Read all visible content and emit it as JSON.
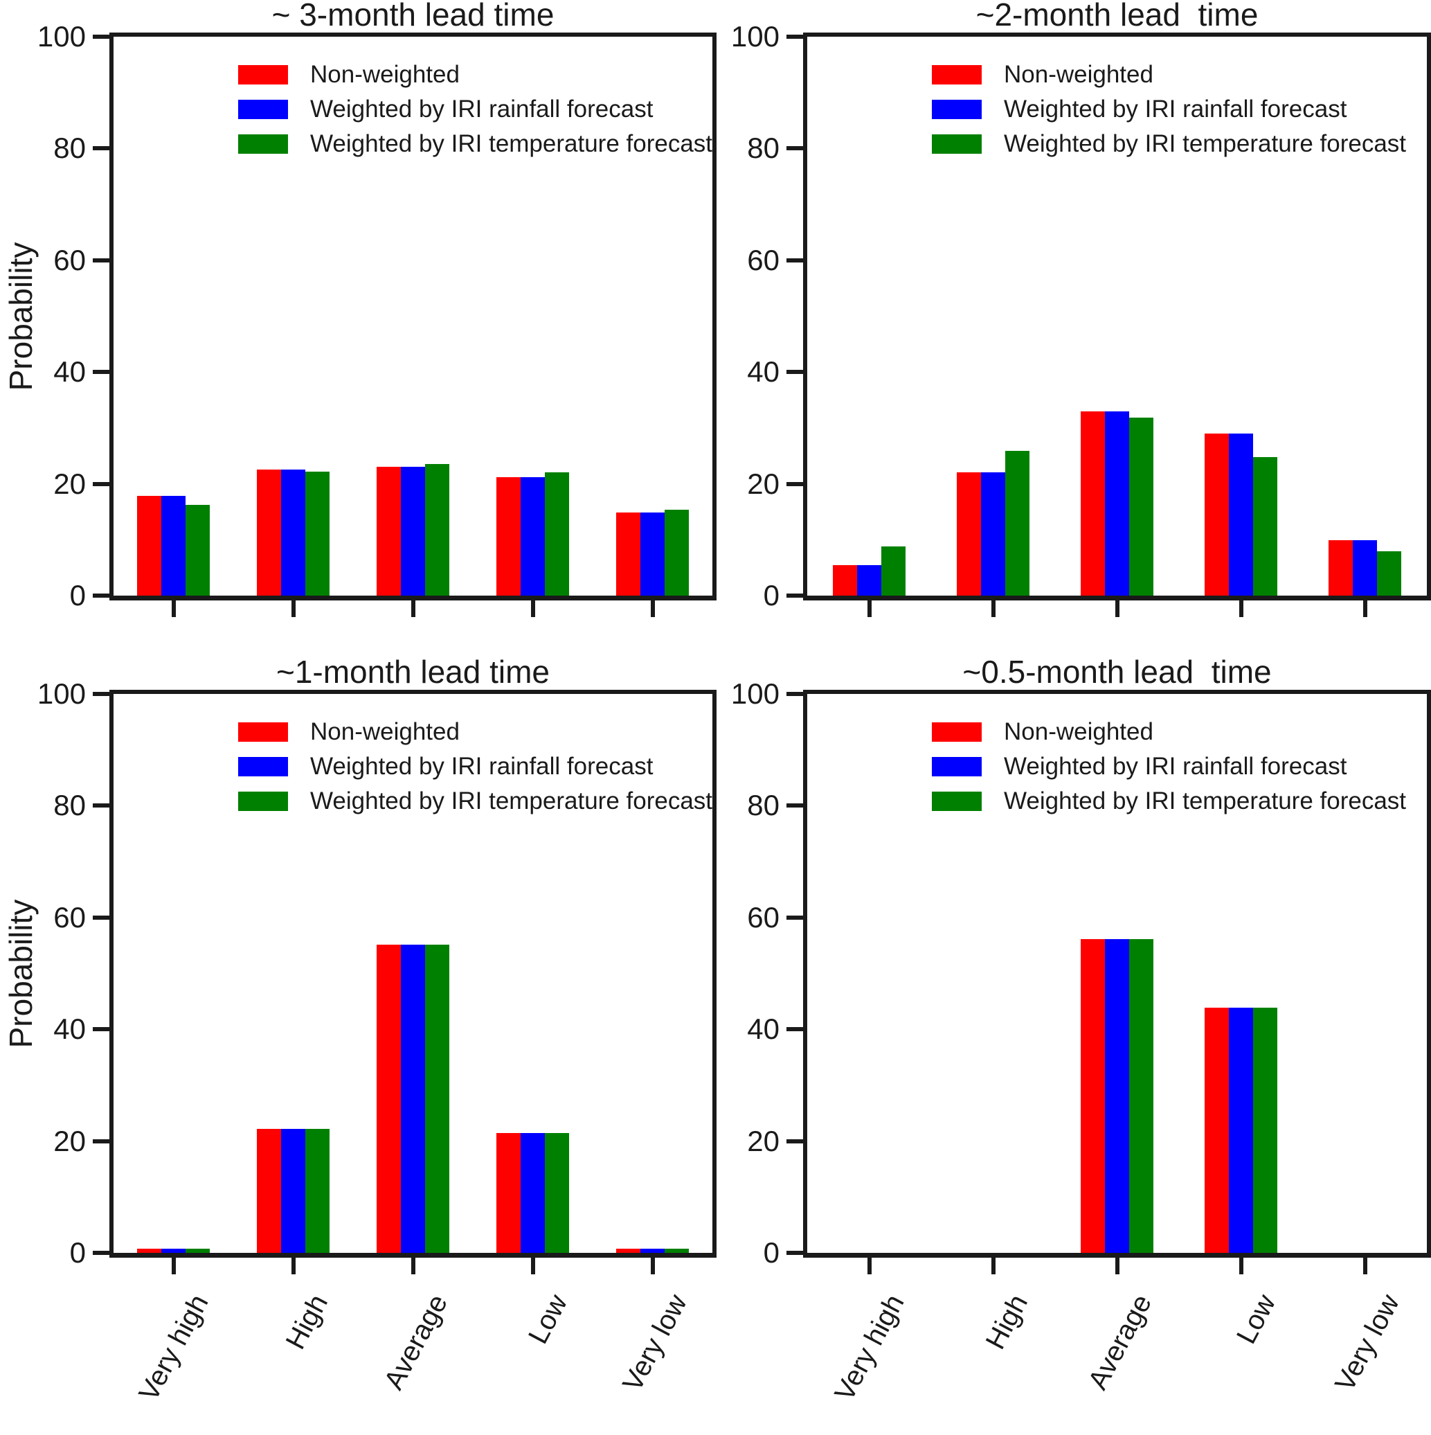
{
  "figure": {
    "y_axis_label": "Probability",
    "legend_labels": [
      "Non-weighted",
      "Weighted by IRI rainfall forecast",
      "Weighted by IRI temperature forecast"
    ],
    "colors": {
      "non_weighted": "#ff0000",
      "rainfall": "#0000ff",
      "temperature": "#008000",
      "axis": "#1a1a1a"
    }
  },
  "chart_data": [
    {
      "type": "bar",
      "title": "~ 3-month lead time",
      "ylabel": "Probability",
      "ylim": [
        0,
        100
      ],
      "yticks": [
        0,
        20,
        40,
        60,
        80,
        100
      ],
      "categories": [
        "Very high",
        "High",
        "Average",
        "Low",
        "Very low"
      ],
      "show_x_labels": false,
      "legend": true,
      "legend_position": "upper-left",
      "series": [
        {
          "name": "Non-weighted",
          "key": "non-weighted",
          "color": "#ff0000",
          "values": [
            17.8,
            22.6,
            23.1,
            21.2,
            14.9
          ]
        },
        {
          "name": "Weighted by IRI rainfall forecast",
          "key": "rainfall",
          "color": "#0000ff",
          "values": [
            17.8,
            22.6,
            23.1,
            21.2,
            14.9
          ]
        },
        {
          "name": "Weighted by IRI temperature forecast",
          "key": "temperature",
          "color": "#008000",
          "values": [
            16.2,
            22.2,
            23.6,
            22.0,
            15.4
          ]
        }
      ]
    },
    {
      "type": "bar",
      "title": "~2-month lead  time",
      "ylabel": null,
      "ylim": [
        0,
        100
      ],
      "yticks": [
        0,
        20,
        40,
        60,
        80,
        100
      ],
      "categories": [
        "Very high",
        "High",
        "Average",
        "Low",
        "Very low"
      ],
      "show_x_labels": false,
      "legend": true,
      "legend_position": "upper-left",
      "series": [
        {
          "name": "Non-weighted",
          "key": "non-weighted",
          "color": "#ff0000",
          "values": [
            5.4,
            22.1,
            33.0,
            29.0,
            9.9
          ]
        },
        {
          "name": "Weighted by IRI rainfall forecast",
          "key": "rainfall",
          "color": "#0000ff",
          "values": [
            5.4,
            22.1,
            33.0,
            29.0,
            9.9
          ]
        },
        {
          "name": "Weighted by IRI temperature forecast",
          "key": "temperature",
          "color": "#008000",
          "values": [
            8.8,
            25.9,
            31.9,
            24.8,
            7.9
          ]
        }
      ]
    },
    {
      "type": "bar",
      "title": "~1-month lead time",
      "ylabel": "Probability",
      "ylim": [
        0,
        100
      ],
      "yticks": [
        0,
        20,
        40,
        60,
        80,
        100
      ],
      "categories": [
        "Very high",
        "High",
        "Average",
        "Low",
        "Very low"
      ],
      "show_x_labels": true,
      "legend": true,
      "legend_position": "upper-left",
      "series": [
        {
          "name": "Non-weighted",
          "key": "non-weighted",
          "color": "#ff0000",
          "values": [
            0.7,
            22.2,
            55.2,
            21.4,
            0.7
          ]
        },
        {
          "name": "Weighted by IRI rainfall forecast",
          "key": "rainfall",
          "color": "#0000ff",
          "values": [
            0.7,
            22.2,
            55.2,
            21.4,
            0.7
          ]
        },
        {
          "name": "Weighted by IRI temperature forecast",
          "key": "temperature",
          "color": "#008000",
          "values": [
            0.7,
            22.2,
            55.2,
            21.4,
            0.7
          ]
        }
      ]
    },
    {
      "type": "bar",
      "title": "~0.5-month lead  time",
      "ylabel": null,
      "ylim": [
        0,
        100
      ],
      "yticks": [
        0,
        20,
        40,
        60,
        80,
        100
      ],
      "categories": [
        "Very high",
        "High",
        "Average",
        "Low",
        "Very low"
      ],
      "show_x_labels": true,
      "legend": true,
      "legend_position": "upper-left",
      "series": [
        {
          "name": "Non-weighted",
          "key": "non-weighted",
          "color": "#ff0000",
          "values": [
            0,
            0,
            56.1,
            43.9,
            0
          ]
        },
        {
          "name": "Weighted by IRI rainfall forecast",
          "key": "rainfall",
          "color": "#0000ff",
          "values": [
            0,
            0,
            56.1,
            43.9,
            0
          ]
        },
        {
          "name": "Weighted by IRI temperature forecast",
          "key": "temperature",
          "color": "#008000",
          "values": [
            0,
            0,
            56.1,
            43.9,
            0
          ]
        }
      ]
    }
  ]
}
